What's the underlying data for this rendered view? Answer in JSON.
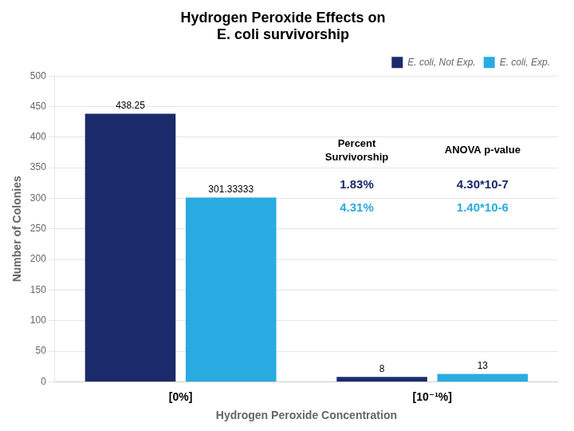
{
  "chart_data": {
    "type": "bar",
    "title": [
      "Hydrogen Peroxide Effects on",
      "E. coli survivorship"
    ],
    "xlabel": "Hydrogen Peroxide Concentration",
    "ylabel": "Number of Colonies",
    "categories": [
      "[0%]",
      "[10⁻¹%]"
    ],
    "series": [
      {
        "name": "E. coli, Not Exp.",
        "color": "#1B2A6B",
        "values": [
          438.25,
          8
        ]
      },
      {
        "name": "E. coli, Exp.",
        "color": "#29ABE2",
        "values": [
          301.33333,
          13
        ]
      }
    ],
    "ylim": [
      0,
      500
    ],
    "yticks": [
      0,
      50,
      100,
      150,
      200,
      250,
      300,
      350,
      400,
      450,
      500
    ],
    "grid": true,
    "legend": "upper right",
    "data_labels": true,
    "annotations": [
      {
        "text": "Percent\nSurvivorship"
      },
      {
        "text": "ANOVA p-value"
      },
      {
        "text": "1.83%",
        "color": "#1B2A6B"
      },
      {
        "text": "4.30*10-7",
        "color": "#1B2A6B"
      },
      {
        "text": "4.31%",
        "color": "#29ABE2"
      },
      {
        "text": "1.40*10-6",
        "color": "#29ABE2"
      }
    ]
  }
}
